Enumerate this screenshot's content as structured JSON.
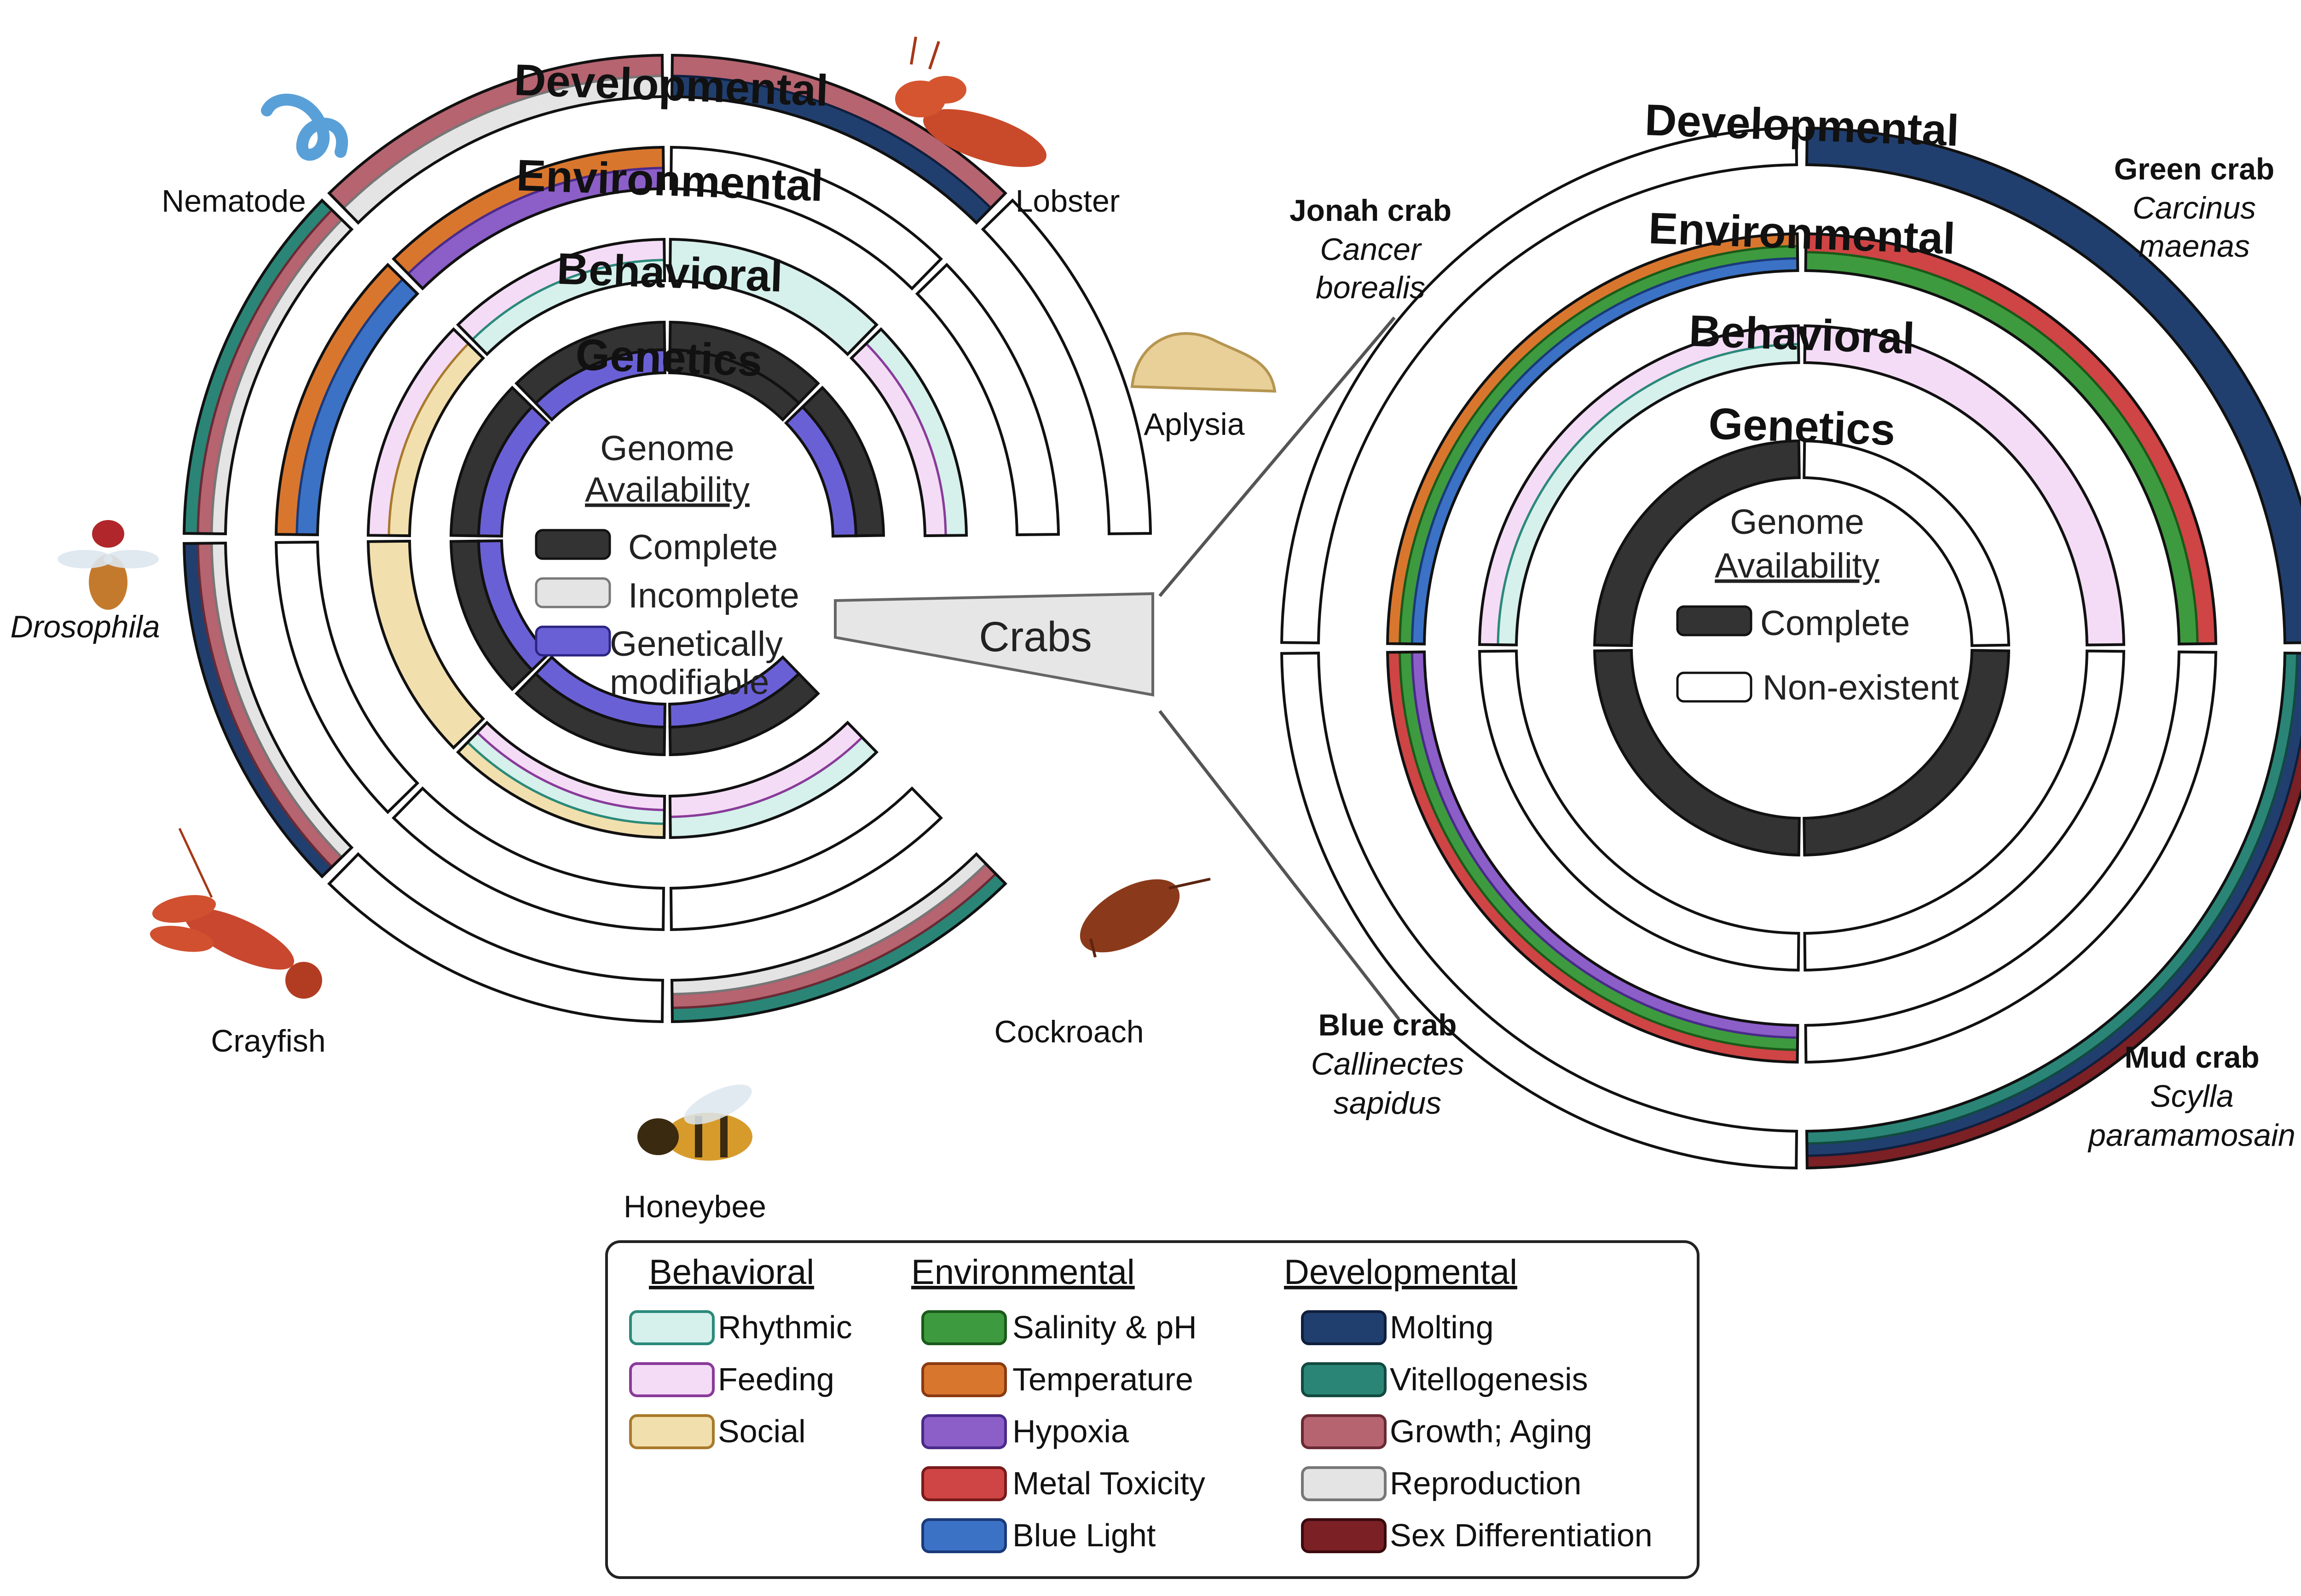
{
  "left_circle": {
    "rings": {
      "developmental": "Developmental",
      "environmental": "Environmental",
      "behavioral": "Behavioral",
      "genetics": "Genetics"
    },
    "center": {
      "title_1": "Genome",
      "title_2": "Availability",
      "legend": [
        "Complete",
        "Incomplete",
        "Genetically",
        "modifiable"
      ]
    },
    "organisms": [
      "Nematode",
      "Lobster",
      "Aplysia",
      "Drosophila",
      "Crayfish",
      "Honeybee",
      "Cockroach"
    ],
    "crabs_label": "Crabs"
  },
  "right_circle": {
    "rings": {
      "developmental": "Developmental",
      "environmental": "Environmental",
      "behavioral": "Behavioral",
      "genetics": "Genetics"
    },
    "center": {
      "title_1": "Genome",
      "title_2": "Availability",
      "legend": [
        "Complete",
        "Non-existent"
      ]
    },
    "crabs": [
      {
        "common": "Jonah crab",
        "latin_1": "Cancer",
        "latin_2": "borealis"
      },
      {
        "common": "Green crab",
        "latin_1": "Carcinus",
        "latin_2": "maenas"
      },
      {
        "common": "Blue crab",
        "latin_1": "Callinectes",
        "latin_2": "sapidus"
      },
      {
        "common": "Mud crab",
        "latin_1": "Scylla",
        "latin_2": "paramamosain"
      }
    ]
  },
  "legend": {
    "behavioral": {
      "heading": "Behavioral",
      "items": [
        {
          "label": "Rhythmic",
          "color": "#d6f0ec"
        },
        {
          "label": "Feeding",
          "color": "#f4dcf6"
        },
        {
          "label": "Social",
          "color": "#f2dfae"
        }
      ]
    },
    "environmental": {
      "heading": "Environmental",
      "items": [
        {
          "label": "Salinity & pH",
          "color": "#3e9a3e"
        },
        {
          "label": "Temperature",
          "color": "#d9762e"
        },
        {
          "label": "Hypoxia",
          "color": "#8c5ec8"
        },
        {
          "label": "Metal Toxicity",
          "color": "#cf4444"
        },
        {
          "label": "Blue Light",
          "color": "#3b72c6"
        }
      ]
    },
    "developmental": {
      "heading": "Developmental",
      "items": [
        {
          "label": "Molting",
          "color": "#213f6e"
        },
        {
          "label": "Vitellogenesis",
          "color": "#2a8577"
        },
        {
          "label": "Growth; Aging",
          "color": "#b56470"
        },
        {
          "label": "Reproduction",
          "color": "#e4e4e4"
        },
        {
          "label": "Sex Differentiation",
          "color": "#7b2025"
        }
      ]
    }
  }
}
